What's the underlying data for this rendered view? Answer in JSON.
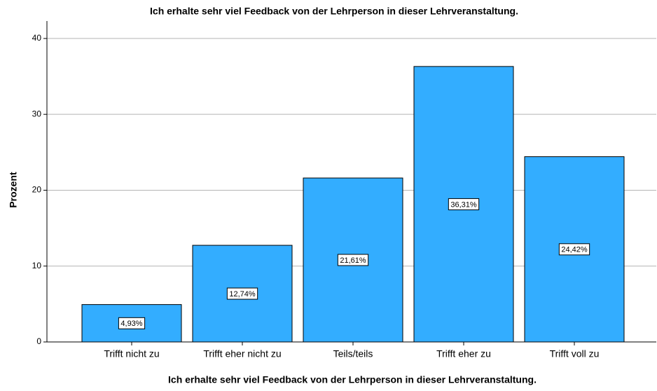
{
  "chart_data": {
    "type": "bar",
    "title": "Ich erhalte sehr viel Feedback von der Lehrperson in dieser Lehrveranstaltung.",
    "x_label": "Ich erhalte sehr viel Feedback von der Lehrperson in dieser Lehrveranstaltung.",
    "y_label": "Prozent",
    "categories": [
      "Trifft nicht zu",
      "Trifft eher nicht zu",
      "Teils/teils",
      "Trifft eher zu",
      "Trifft voll zu"
    ],
    "values": [
      4.93,
      12.74,
      21.61,
      36.31,
      24.42
    ],
    "value_labels": [
      "4,93%",
      "12,74%",
      "21,61%",
      "36,31%",
      "24,42%"
    ],
    "color": "#33adff",
    "ylim": [
      0,
      42.3
    ],
    "yticks": [
      0,
      10,
      20,
      30,
      40
    ],
    "grid": true
  }
}
